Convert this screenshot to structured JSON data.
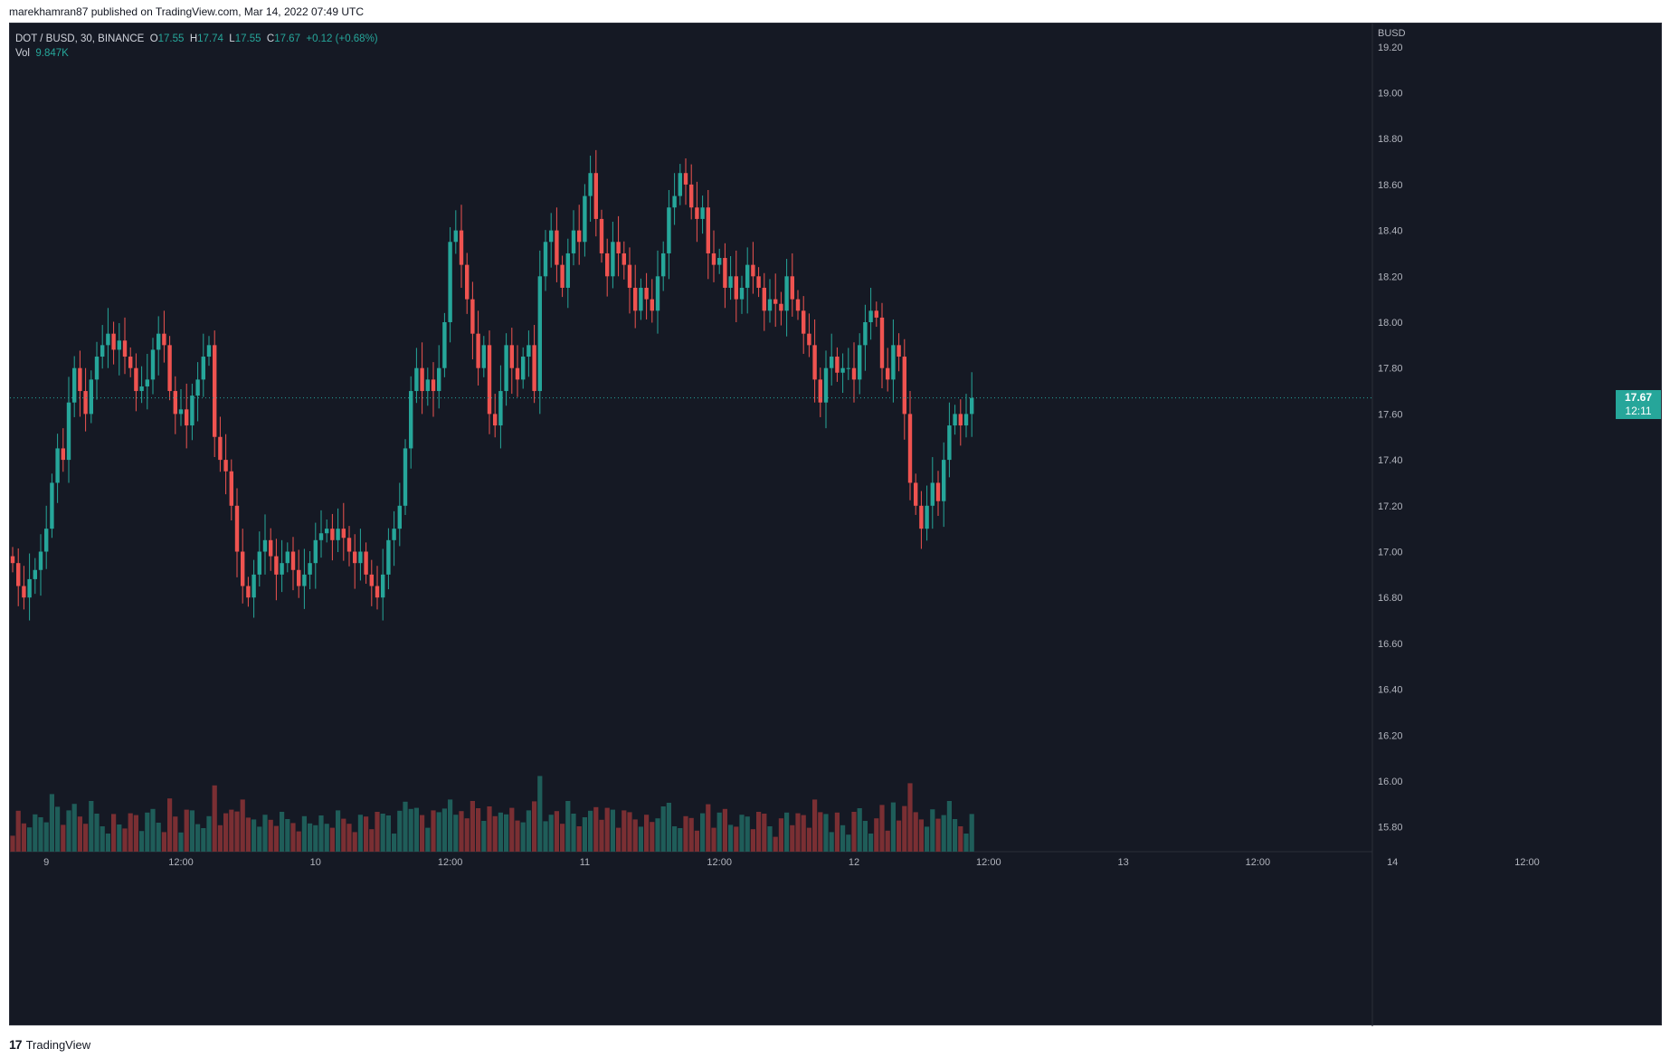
{
  "header": {
    "caption": "marekhamran87 published on TradingView.com, Mar 14, 2022 07:49 UTC"
  },
  "legend": {
    "symbol": "DOT / BUSD, 30, BINANCE",
    "o_label": "O",
    "o_value": "17.55",
    "h_label": "H",
    "h_value": "17.74",
    "l_label": "L",
    "l_value": "17.55",
    "c_label": "C",
    "c_value": "17.67",
    "change": "+0.12 (+0.68%)",
    "vol_label": "Vol",
    "vol_value": "9.847K"
  },
  "price_axis": {
    "currency": "BUSD"
  },
  "last_price": {
    "price": "17.67",
    "countdown": "12:11",
    "value": 17.67
  },
  "footer": {
    "logo_mark": "17",
    "logo_text": "TradingView"
  },
  "colors": {
    "up": "#26a69a",
    "down": "#ef5350",
    "background": "#151924",
    "text": "#b2b5be"
  },
  "chart_data": {
    "type": "candlestick",
    "interval": "30",
    "y_ticks": [
      "15.80",
      "16.00",
      "16.20",
      "16.40",
      "16.60",
      "16.80",
      "17.00",
      "17.20",
      "17.40",
      "17.60",
      "17.80",
      "18.00",
      "18.20",
      "18.40",
      "18.60",
      "18.80",
      "19.00",
      "19.20"
    ],
    "x_ticks": [
      {
        "label": "9",
        "bar": 6
      },
      {
        "label": "12:00",
        "bar": 30
      },
      {
        "label": "10",
        "bar": 54
      },
      {
        "label": "12:00",
        "bar": 78
      },
      {
        "label": "11",
        "bar": 102
      },
      {
        "label": "12:00",
        "bar": 126
      },
      {
        "label": "12",
        "bar": 150
      },
      {
        "label": "12:00",
        "bar": 174
      },
      {
        "label": "13",
        "bar": 198
      },
      {
        "label": "12:00",
        "bar": 222
      },
      {
        "label": "14",
        "bar": 246
      },
      {
        "label": "12:00",
        "bar": 270
      }
    ],
    "closes": [
      16.95,
      16.85,
      16.8,
      16.88,
      16.92,
      17.0,
      17.1,
      17.3,
      17.45,
      17.4,
      17.65,
      17.8,
      17.7,
      17.6,
      17.75,
      17.85,
      17.9,
      17.95,
      17.88,
      17.92,
      17.85,
      17.8,
      17.7,
      17.72,
      17.75,
      17.88,
      17.95,
      17.9,
      17.7,
      17.6,
      17.62,
      17.55,
      17.68,
      17.75,
      17.85,
      17.9,
      17.5,
      17.4,
      17.35,
      17.2,
      17.0,
      16.85,
      16.8,
      16.9,
      17.0,
      17.05,
      16.98,
      16.9,
      16.95,
      17.0,
      16.92,
      16.85,
      16.9,
      16.95,
      17.05,
      17.08,
      17.1,
      17.05,
      17.1,
      17.06,
      17.0,
      16.95,
      17.0,
      16.9,
      16.85,
      16.8,
      16.9,
      17.05,
      17.1,
      17.2,
      17.45,
      17.7,
      17.8,
      17.7,
      17.75,
      17.7,
      17.8,
      18.0,
      18.35,
      18.4,
      18.25,
      18.1,
      17.95,
      17.8,
      17.9,
      17.6,
      17.55,
      17.7,
      17.9,
      17.8,
      17.75,
      17.85,
      17.9,
      17.7,
      18.2,
      18.35,
      18.4,
      18.25,
      18.15,
      18.3,
      18.4,
      18.35,
      18.55,
      18.65,
      18.45,
      18.3,
      18.2,
      18.35,
      18.3,
      18.25,
      18.15,
      18.05,
      18.15,
      18.1,
      18.05,
      18.2,
      18.3,
      18.5,
      18.55,
      18.65,
      18.6,
      18.5,
      18.45,
      18.5,
      18.3,
      18.25,
      18.28,
      18.15,
      18.2,
      18.1,
      18.15,
      18.25,
      18.2,
      18.15,
      18.05,
      18.1,
      18.08,
      18.05,
      18.2,
      18.1,
      18.05,
      17.95,
      17.9,
      17.75,
      17.65,
      17.8,
      17.85,
      17.78,
      17.8,
      17.8,
      17.75,
      17.9,
      18.0,
      18.05,
      18.02,
      17.8,
      17.75,
      17.9,
      17.85,
      17.6,
      17.3,
      17.2,
      17.1,
      17.2,
      17.3,
      17.22,
      17.4,
      17.55,
      17.6,
      17.55,
      17.6,
      17.67
    ],
    "volume_max_label": "9.847K"
  }
}
